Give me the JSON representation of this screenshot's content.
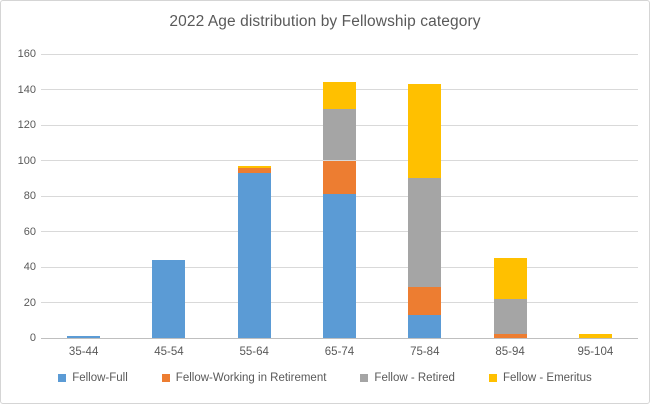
{
  "chart_data": {
    "type": "bar",
    "stacked": true,
    "title": "2022 Age distribution by Fellowship category",
    "categories": [
      "35-44",
      "45-54",
      "55-64",
      "65-74",
      "75-84",
      "85-94",
      "95-104"
    ],
    "series": [
      {
        "name": "Fellow-Full",
        "color": "#5B9BD5",
        "values": [
          1,
          44,
          93,
          81,
          13,
          0,
          0
        ]
      },
      {
        "name": "Fellow-Working in Retirement",
        "color": "#ED7D31",
        "values": [
          0,
          0,
          3,
          19,
          16,
          2,
          0
        ]
      },
      {
        "name": "Fellow - Retired",
        "color": "#A5A5A5",
        "values": [
          0,
          0,
          0,
          29,
          61,
          20,
          0
        ]
      },
      {
        "name": "Fellow - Emeritus",
        "color": "#FFC000",
        "values": [
          0,
          0,
          1,
          15,
          53,
          23,
          2
        ]
      }
    ],
    "totals": [
      1,
      44,
      97,
      144,
      143,
      45,
      2
    ],
    "xlabel": "",
    "ylabel": "",
    "ylim": [
      0,
      160
    ],
    "y_tick_step": 20,
    "y_tick_labels": [
      "0",
      "20",
      "40",
      "60",
      "80",
      "100",
      "120",
      "140",
      "160"
    ],
    "grid": true,
    "legend_position": "bottom"
  },
  "colors": {
    "text": "#595959",
    "gridline": "#D9D9D9",
    "axis_line": "#BFBFBF",
    "background": "#FFFFFF",
    "frame_border": "#D5D5D5"
  }
}
